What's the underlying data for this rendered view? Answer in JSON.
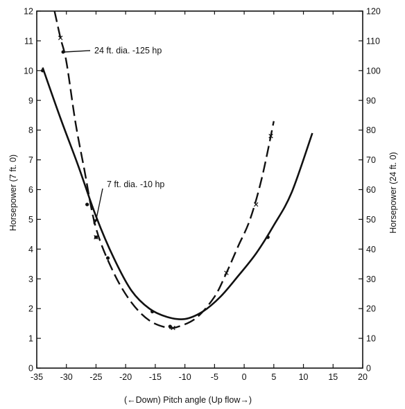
{
  "chart_data": {
    "type": "line",
    "title": "",
    "xlabel": "(←Down) Pitch angle (Up flow→)",
    "ylabel_left": "Horsepower (7 ft. 0)",
    "ylabel_right": "Horsepower (24 ft. 0)",
    "xlim": [
      -35,
      20
    ],
    "ylim_left": [
      0,
      12
    ],
    "ylim_right": [
      0,
      120
    ],
    "x_ticks": [
      "-35",
      "-30",
      "-25",
      "-20",
      "-15",
      "-10",
      "-5",
      "0",
      "5",
      "10",
      "15",
      "20"
    ],
    "y_ticks_left": [
      "0",
      "1",
      "2",
      "3",
      "4",
      "5",
      "6",
      "7",
      "8",
      "9",
      "10",
      "11",
      "12"
    ],
    "y_ticks_right": [
      "0",
      "10",
      "20",
      "30",
      "40",
      "50",
      "60",
      "70",
      "80",
      "90",
      "100",
      "110",
      "120"
    ],
    "grid": false,
    "series": [
      {
        "axis": "left",
        "style": "solid",
        "curve": [
          [
            -34,
            10.1
          ],
          [
            -31,
            8.4
          ],
          [
            -28,
            6.8
          ],
          [
            -25,
            5.1
          ],
          [
            -22,
            3.7
          ],
          [
            -19,
            2.6
          ],
          [
            -16,
            2.0
          ],
          [
            -13,
            1.72
          ],
          [
            -10,
            1.65
          ],
          [
            -7,
            1.9
          ],
          [
            -4,
            2.4
          ],
          [
            -1,
            3.1
          ],
          [
            2,
            3.85
          ],
          [
            5,
            4.8
          ],
          [
            8,
            5.9
          ],
          [
            11.5,
            7.9
          ]
        ],
        "points": [
          [
            -34,
            10.0
          ],
          [
            -26.5,
            5.5
          ],
          [
            -25,
            4.4
          ],
          [
            -23,
            3.7
          ],
          [
            -15.5,
            1.9
          ],
          [
            -12.5,
            1.4
          ],
          [
            4,
            4.4
          ]
        ]
      },
      {
        "axis": "right",
        "style": "dashed",
        "curve": [
          [
            -32,
            120
          ],
          [
            -31,
            111
          ],
          [
            -30,
            103
          ],
          [
            -28.5,
            83
          ],
          [
            -27,
            67
          ],
          [
            -25,
            47
          ],
          [
            -22,
            32
          ],
          [
            -19,
            22
          ],
          [
            -16,
            16
          ],
          [
            -13,
            13.6
          ],
          [
            -11,
            14
          ],
          [
            -8,
            17
          ],
          [
            -5,
            24
          ],
          [
            -3,
            32
          ],
          [
            -1,
            41
          ],
          [
            1,
            50
          ],
          [
            3,
            64
          ],
          [
            5,
            83
          ]
        ],
        "points": [
          [
            -31,
            111
          ],
          [
            -25,
            44
          ],
          [
            -12,
            13.5
          ],
          [
            -3,
            32
          ],
          [
            2,
            55
          ],
          [
            4.5,
            78
          ]
        ]
      }
    ],
    "annotations": [
      {
        "text": "24 ft. dia. -125 hp"
      },
      {
        "text": "7 ft. dia. -10 hp"
      }
    ]
  }
}
